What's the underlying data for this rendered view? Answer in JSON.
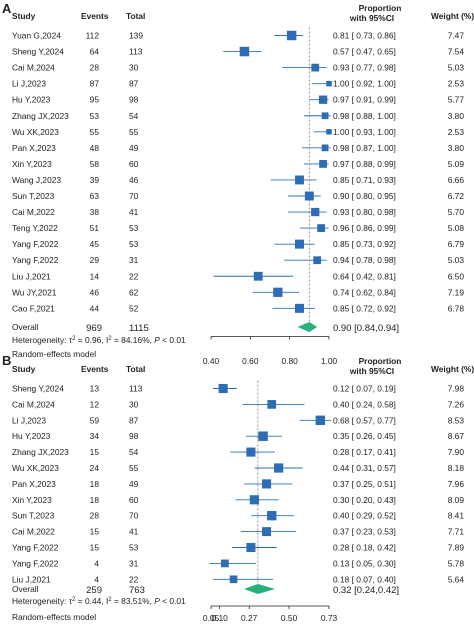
{
  "panels": [
    {
      "letter": "A",
      "headers": {
        "study": "Study",
        "events": "Events",
        "total": "Total",
        "proportion_line1": "Proportion",
        "proportion_line2": "with 95%CI",
        "weight": "Weight (%)"
      },
      "overall": {
        "label": "Overall",
        "events": "969",
        "total": "1115",
        "ci_text": "0.90 [0.84,0.94]"
      },
      "heterogeneity": {
        "prefix": "Heterogeneity: τ",
        "tau_sup": "2",
        "mid1": " = 0.96, I",
        "i_sup": "2",
        "mid2": " = 84.16%, ",
        "p_label": "P",
        "p_value": " < 0.01"
      },
      "model": "Random-effects model",
      "axis_ticks": [
        "0.40",
        "0.60",
        "0.80",
        "1.00"
      ]
    },
    {
      "letter": "B",
      "headers": {
        "study": "Study",
        "events": "Events",
        "total": "Total",
        "proportion_line1": "Proportion",
        "proportion_line2": "with 95%CI",
        "weight": "Weight (%)"
      },
      "overall": {
        "label": "Overall",
        "events": "259",
        "total": "763",
        "ci_text": "0.32 [0.24,0.42]"
      },
      "heterogeneity": {
        "prefix": "Heterogeneity: τ",
        "tau_sup": "2",
        "mid1": " = 0.44, I",
        "i_sup": "2",
        "mid2": " = 83.51%, ",
        "p_label": "P",
        "p_value": " < 0.01"
      },
      "model": "Random-effects model",
      "axis_ticks": [
        "0.05",
        "0.10",
        "0.27",
        "0.50",
        "0.73"
      ]
    }
  ],
  "chart_data": [
    {
      "type": "forest",
      "panel": "A",
      "xlim": [
        0.4,
        1.0
      ],
      "x_ticks": [
        0.4,
        0.6,
        0.8,
        1.0
      ],
      "studies": [
        {
          "study": "Yuan G,2024",
          "events": 112,
          "total": 139,
          "est": 0.81,
          "lo": 0.73,
          "hi": 0.86,
          "ci_text": "0.81 [ 0.73, 0.86]",
          "weight": 7.47
        },
        {
          "study": "Sheng Y,2024",
          "events": 64,
          "total": 113,
          "est": 0.57,
          "lo": 0.47,
          "hi": 0.65,
          "ci_text": "0.57 [ 0.47, 0.65]",
          "weight": 7.54
        },
        {
          "study": "Cai M,2024",
          "events": 28,
          "total": 30,
          "est": 0.93,
          "lo": 0.77,
          "hi": 0.98,
          "ci_text": "0.93 [ 0.77, 0.98]",
          "weight": 5.03
        },
        {
          "study": "Li J,2023",
          "events": 87,
          "total": 87,
          "est": 1.0,
          "lo": 0.92,
          "hi": 1.0,
          "ci_text": "1.00 [ 0.92, 1.00]",
          "weight": 2.53
        },
        {
          "study": "Hu Y,2023",
          "events": 95,
          "total": 98,
          "est": 0.97,
          "lo": 0.91,
          "hi": 0.99,
          "ci_text": "0.97 [ 0.91, 0.99]",
          "weight": 5.77
        },
        {
          "study": "Zhang JX,2023",
          "events": 53,
          "total": 54,
          "est": 0.98,
          "lo": 0.88,
          "hi": 1.0,
          "ci_text": "0.98 [ 0.88, 1.00]",
          "weight": 3.8
        },
        {
          "study": "Wu XK,2023",
          "events": 55,
          "total": 55,
          "est": 1.0,
          "lo": 0.93,
          "hi": 1.0,
          "ci_text": "1.00 [ 0.93, 1.00]",
          "weight": 2.53
        },
        {
          "study": "Pan X,2023",
          "events": 48,
          "total": 49,
          "est": 0.98,
          "lo": 0.87,
          "hi": 1.0,
          "ci_text": "0.98 [ 0.87, 1.00]",
          "weight": 3.8
        },
        {
          "study": "Xin Y,2023",
          "events": 58,
          "total": 60,
          "est": 0.97,
          "lo": 0.88,
          "hi": 0.99,
          "ci_text": "0.97 [ 0.88, 0.99]",
          "weight": 5.09
        },
        {
          "study": "Wang J,2023",
          "events": 39,
          "total": 46,
          "est": 0.85,
          "lo": 0.71,
          "hi": 0.93,
          "ci_text": "0.85 [ 0.71, 0.93]",
          "weight": 6.66
        },
        {
          "study": "Sun T,2023",
          "events": 63,
          "total": 70,
          "est": 0.9,
          "lo": 0.8,
          "hi": 0.95,
          "ci_text": "0.90 [ 0.80, 0.95]",
          "weight": 6.72
        },
        {
          "study": "Cai M,2022",
          "events": 38,
          "total": 41,
          "est": 0.93,
          "lo": 0.8,
          "hi": 0.98,
          "ci_text": "0.93 [ 0.80, 0.98]",
          "weight": 5.7
        },
        {
          "study": "Teng Y,2022",
          "events": 51,
          "total": 53,
          "est": 0.96,
          "lo": 0.86,
          "hi": 0.99,
          "ci_text": "0.96 [ 0.86, 0.99]",
          "weight": 5.08
        },
        {
          "study": "Yang F,2022",
          "events": 45,
          "total": 53,
          "est": 0.85,
          "lo": 0.73,
          "hi": 0.92,
          "ci_text": "0.85 [ 0.73, 0.92]",
          "weight": 6.79
        },
        {
          "study": "Yang F,2022",
          "events": 29,
          "total": 31,
          "est": 0.94,
          "lo": 0.78,
          "hi": 0.98,
          "ci_text": "0.94 [ 0.78, 0.98]",
          "weight": 5.03
        },
        {
          "study": "Liu J,2021",
          "events": 14,
          "total": 22,
          "est": 0.64,
          "lo": 0.42,
          "hi": 0.81,
          "ci_text": "0.64 [ 0.42, 0.81]",
          "weight": 6.5
        },
        {
          "study": "Wu JY,2021",
          "events": 46,
          "total": 62,
          "est": 0.74,
          "lo": 0.62,
          "hi": 0.84,
          "ci_text": "0.74 [ 0.62, 0.84]",
          "weight": 7.19
        },
        {
          "study": "Cao F,2021",
          "events": 44,
          "total": 52,
          "est": 0.85,
          "lo": 0.72,
          "hi": 0.92,
          "ci_text": "0.85 [ 0.72, 0.92]",
          "weight": 6.78
        }
      ],
      "overall": {
        "est": 0.9,
        "lo": 0.84,
        "hi": 0.94
      },
      "marker_color": "#2E6DB4",
      "diamond_color": "#27B07A"
    },
    {
      "type": "forest",
      "panel": "B",
      "xlim": [
        0.05,
        0.73
      ],
      "x_ticks": [
        0.05,
        0.1,
        0.27,
        0.5,
        0.73
      ],
      "studies": [
        {
          "study": "Sheng Y,2024",
          "events": 13,
          "total": 113,
          "est": 0.12,
          "lo": 0.07,
          "hi": 0.19,
          "ci_text": "0.12 [ 0.07, 0.19]",
          "weight": 7.98
        },
        {
          "study": "Cai M,2024",
          "events": 12,
          "total": 30,
          "est": 0.4,
          "lo": 0.24,
          "hi": 0.58,
          "ci_text": "0.40 [ 0.24, 0.58]",
          "weight": 7.26
        },
        {
          "study": "Li J,2023",
          "events": 59,
          "total": 87,
          "est": 0.68,
          "lo": 0.57,
          "hi": 0.77,
          "ci_text": "0.68 [ 0.57, 0.77]",
          "weight": 8.53
        },
        {
          "study": "Hu Y,2023",
          "events": 34,
          "total": 98,
          "est": 0.35,
          "lo": 0.26,
          "hi": 0.45,
          "ci_text": "0.35 [ 0.26, 0.45]",
          "weight": 8.67
        },
        {
          "study": "Zhang JX,2023",
          "events": 15,
          "total": 54,
          "est": 0.28,
          "lo": 0.17,
          "hi": 0.41,
          "ci_text": "0.28 [ 0.17, 0.41]",
          "weight": 7.9
        },
        {
          "study": "Wu XK,2023",
          "events": 24,
          "total": 55,
          "est": 0.44,
          "lo": 0.31,
          "hi": 0.57,
          "ci_text": "0.44 [ 0.31, 0.57]",
          "weight": 8.18
        },
        {
          "study": "Pan X,2023",
          "events": 18,
          "total": 49,
          "est": 0.37,
          "lo": 0.25,
          "hi": 0.51,
          "ci_text": "0.37 [ 0.25, 0.51]",
          "weight": 7.96
        },
        {
          "study": "Xin Y,2023",
          "events": 18,
          "total": 60,
          "est": 0.3,
          "lo": 0.2,
          "hi": 0.43,
          "ci_text": "0.30 [ 0.20, 0.43]",
          "weight": 8.09
        },
        {
          "study": "Sun T,2023",
          "events": 28,
          "total": 70,
          "est": 0.4,
          "lo": 0.29,
          "hi": 0.52,
          "ci_text": "0.40 [ 0.29, 0.52]",
          "weight": 8.41
        },
        {
          "study": "Cai M,2022",
          "events": 15,
          "total": 41,
          "est": 0.37,
          "lo": 0.23,
          "hi": 0.53,
          "ci_text": "0.37 [ 0.23, 0.53]",
          "weight": 7.71
        },
        {
          "study": "Yang F,2022",
          "events": 15,
          "total": 53,
          "est": 0.28,
          "lo": 0.18,
          "hi": 0.42,
          "ci_text": "0.28 [ 0.18, 0.42]",
          "weight": 7.89
        },
        {
          "study": "Yang F,2022",
          "events": 4,
          "total": 31,
          "est": 0.13,
          "lo": 0.05,
          "hi": 0.3,
          "ci_text": "0.13 [ 0.05, 0.30]",
          "weight": 5.78
        },
        {
          "study": "Liu J,2021",
          "events": 4,
          "total": 22,
          "est": 0.18,
          "lo": 0.07,
          "hi": 0.4,
          "ci_text": "0.18 [ 0.07, 0.40]",
          "weight": 5.64
        }
      ],
      "overall": {
        "est": 0.32,
        "lo": 0.24,
        "hi": 0.42
      },
      "marker_color": "#2E6DB4",
      "diamond_color": "#27B07A"
    }
  ]
}
